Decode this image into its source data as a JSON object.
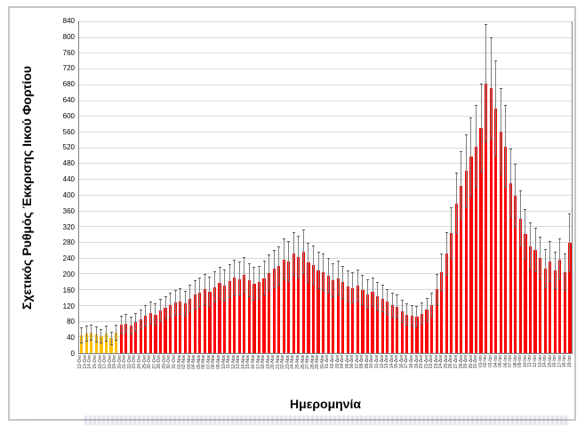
{
  "figure": {
    "x_axis_title": "Ημερομηνία",
    "y_axis_title": "Σχετικός Ρυθμός Έκκρισης Ιικού Φορτίου"
  },
  "colors": {
    "bar_red": "#ff0000",
    "bar_orange": "#ffc000",
    "error_bar": "#808080",
    "gridline": "#d9d9d9",
    "plot_border": "#7f7f7f"
  },
  "chart_data": {
    "type": "bar",
    "title": "",
    "xlabel": "Ημερομηνία",
    "ylabel": "Σχετικός Ρυθμός Έκκρισης Ιικού Φορτίου",
    "ylim": [
      0,
      840
    ],
    "yticks": [
      0,
      40,
      80,
      120,
      160,
      200,
      240,
      280,
      320,
      360,
      400,
      440,
      480,
      520,
      560,
      600,
      640,
      680,
      720,
      760,
      800,
      840
    ],
    "grid": true,
    "legend": false,
    "orange_bar_count": 8,
    "error_bars": true,
    "categories": [
      "12-Οκτ",
      "13-Οκτ",
      "14-Οκτ",
      "15-Οκτ",
      "16-Οκτ",
      "17-Οκτ",
      "18-Οκτ",
      "19-Οκτ",
      "20-Οκτ",
      "21-Οκτ",
      "22-Οκτ",
      "23-Οκτ",
      "24-Οκτ",
      "25-Οκτ",
      "26-Οκτ",
      "27-Οκτ",
      "28-Οκτ",
      "29-Οκτ",
      "30-Οκτ",
      "31-Οκτ",
      "01-Νοε",
      "02-Νοε",
      "03-Νοε",
      "04-Νοε",
      "05-Νοε",
      "06-Νοε",
      "07-Νοε",
      "08-Νοε",
      "09-Νοε",
      "10-Νοε",
      "11-Νοε",
      "12-Νοε",
      "13-Νοε",
      "14-Νοε",
      "15-Νοε",
      "16-Νοε",
      "17-Νοε",
      "18-Νοε",
      "19-Νοε",
      "20-Νοε",
      "21-Νοε",
      "22-Νοε",
      "23-Νοε",
      "24-Νοε",
      "25-Νοε",
      "26-Νοε",
      "27-Νοε",
      "28-Νοε",
      "29-Νοε",
      "30-Νοε",
      "01-Δεκ",
      "02-Δεκ",
      "03-Δεκ",
      "04-Δεκ",
      "05-Δεκ",
      "06-Δεκ",
      "07-Δεκ",
      "08-Δεκ",
      "09-Δεκ",
      "10-Δεκ",
      "11-Δεκ",
      "12-Δεκ",
      "13-Δεκ",
      "14-Δεκ",
      "15-Δεκ",
      "16-Δεκ",
      "17-Δεκ",
      "18-Δεκ",
      "19-Δεκ",
      "20-Δεκ",
      "21-Δεκ",
      "22-Δεκ",
      "23-Δεκ",
      "24-Δεκ",
      "25-Δεκ",
      "26-Δεκ",
      "27-Δεκ",
      "28-Δεκ",
      "29-Δεκ",
      "30-Δεκ",
      "31-Δεκ",
      "01-Ιαν",
      "02-Ιαν",
      "03-Ιαν",
      "04-Ιαν",
      "05-Ιαν",
      "06-Ιαν",
      "07-Ιαν",
      "08-Ιαν",
      "09-Ιαν",
      "10-Ιαν",
      "11-Ιαν",
      "12-Ιαν",
      "13-Ιαν",
      "14-Ιαν",
      "15-Ιαν",
      "16-Ιαν",
      "17-Ιαν",
      "18-Ιαν",
      "19-Ιαν"
    ],
    "values": [
      45,
      50,
      52,
      48,
      42,
      50,
      38,
      52,
      72,
      75,
      70,
      78,
      85,
      95,
      102,
      98,
      108,
      115,
      122,
      128,
      132,
      126,
      138,
      148,
      154,
      162,
      156,
      168,
      178,
      172,
      182,
      192,
      188,
      198,
      185,
      176,
      180,
      190,
      204,
      214,
      222,
      238,
      232,
      252,
      244,
      258,
      230,
      224,
      210,
      205,
      196,
      186,
      190,
      180,
      170,
      166,
      172,
      160,
      150,
      155,
      145,
      138,
      130,
      122,
      118,
      106,
      98,
      95,
      92,
      100,
      110,
      122,
      162,
      205,
      252,
      305,
      380,
      425,
      462,
      498,
      525,
      572,
      685,
      672,
      622,
      562,
      525,
      432,
      400,
      342,
      302,
      272,
      262,
      242,
      215,
      232,
      210,
      238,
      205,
      280
    ],
    "errors": [
      20,
      20,
      20,
      20,
      18,
      20,
      17,
      20,
      23,
      24,
      23,
      24,
      25,
      27,
      28,
      28,
      30,
      30,
      32,
      33,
      34,
      33,
      35,
      37,
      38,
      40,
      38,
      40,
      42,
      41,
      43,
      45,
      44,
      46,
      43,
      42,
      42,
      44,
      47,
      49,
      50,
      53,
      52,
      55,
      54,
      56,
      51,
      50,
      48,
      47,
      45,
      43,
      44,
      42,
      41,
      40,
      41,
      39,
      37,
      38,
      36,
      35,
      33,
      32,
      31,
      29,
      28,
      27,
      27,
      28,
      30,
      32,
      39,
      47,
      55,
      65,
      78,
      87,
      93,
      100,
      105,
      113,
      150,
      130,
      122,
      111,
      105,
      88,
      82,
      72,
      64,
      59,
      57,
      54,
      49,
      52,
      48,
      53,
      47,
      75
    ]
  }
}
